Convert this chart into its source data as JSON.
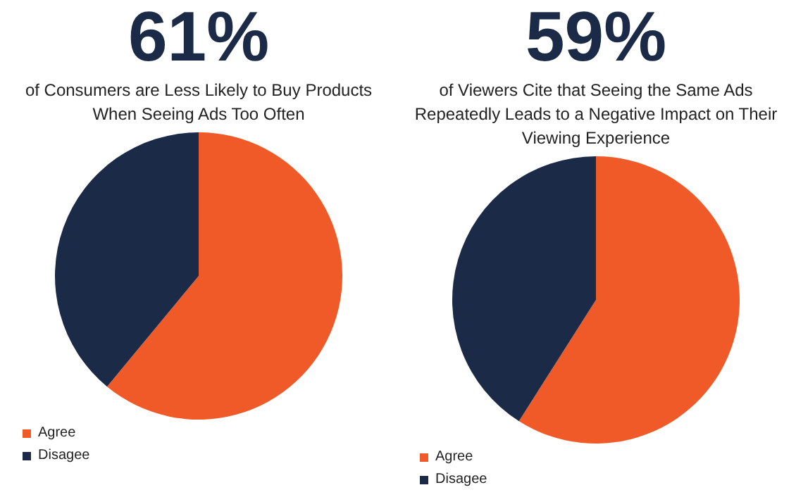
{
  "chart_data": [
    {
      "type": "pie",
      "title": "61%",
      "subtitle": "of Consumers are Less Likely to Buy Products When Seeing Ads Too Often",
      "categories": [
        "Agree",
        "Disagee"
      ],
      "values": [
        61,
        39
      ],
      "colors": [
        "#f05a28",
        "#1b2a47"
      ],
      "legend": "bottom left"
    },
    {
      "type": "pie",
      "title": "59%",
      "subtitle": "of Viewers Cite that Seeing the Same Ads Repeatedly Leads to a Negative Impact on Their Viewing Experience",
      "categories": [
        "Agree",
        "Disagee"
      ],
      "values": [
        59,
        41
      ],
      "colors": [
        "#f05a28",
        "#1b2a47"
      ],
      "legend": "bottom left"
    }
  ]
}
